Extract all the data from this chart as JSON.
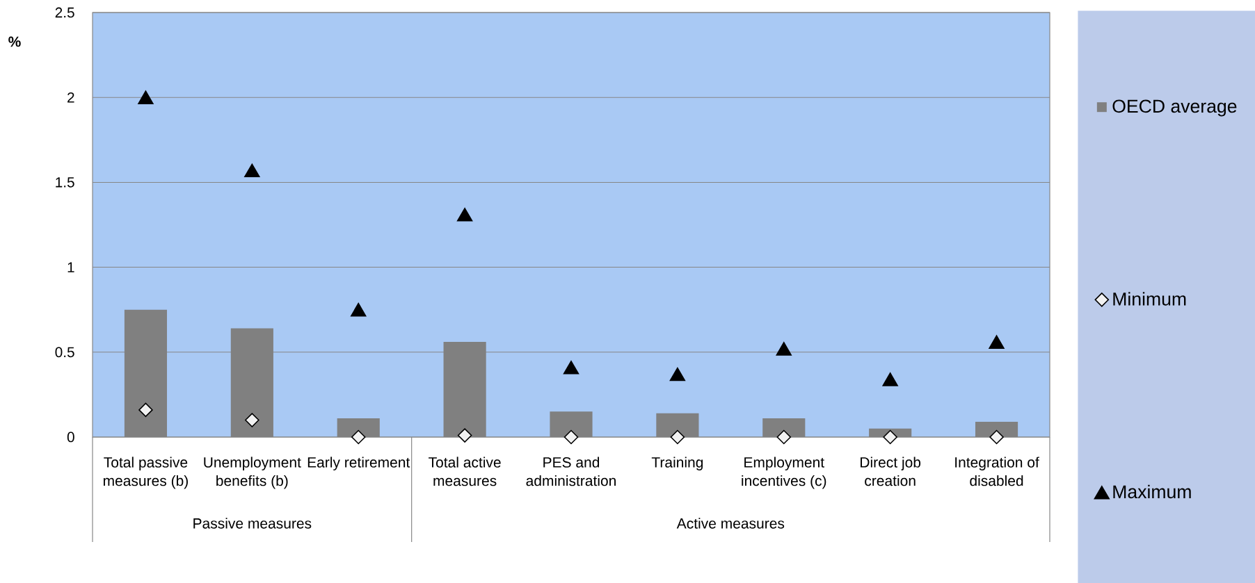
{
  "chart_data": {
    "type": "bar",
    "ylabel": "%",
    "categories": [
      "Total passive measures (b)",
      "Unemployment benefits (b)",
      "Early retirement",
      "Total active measures",
      "PES and administration",
      "Training",
      "Employment incentives (c)",
      "Direct job creation",
      "Integration of disabled"
    ],
    "series": [
      {
        "name": "OECD average",
        "color": "#808080",
        "values": [
          0.75,
          0.64,
          0.11,
          0.56,
          0.15,
          0.14,
          0.11,
          0.05,
          0.09
        ]
      },
      {
        "name": "Minimum",
        "type": "scatter",
        "marker": "diamond",
        "color": "#f2f2f2",
        "x": [
          "Total passive measures (b)",
          "Unemployment benefits (b)",
          "Early retirement",
          "Total active measures",
          "PES and administration",
          "Training",
          "Employment incentives (c)",
          "Direct job creation",
          "Integration of disabled"
        ],
        "values": [
          0.16,
          0.1,
          0,
          0.01,
          0,
          0,
          0,
          0,
          0
        ]
      },
      {
        "name": "Maximum",
        "type": "scatter",
        "marker": "triangle",
        "color": "#000000",
        "x": [
          "Total passive measures (b)",
          "Unemployment benefits (b)",
          "Early retirement",
          "Total active measures",
          "PES and administration",
          "Training",
          "Employment incentives (c)",
          "Direct job creation",
          "Integration of disabled"
        ],
        "values": [
          2.0,
          1.57,
          0.75,
          1.31,
          0.41,
          0.37,
          0.52,
          0.34,
          0.56
        ]
      }
    ],
    "ylim": [
      0,
      2.5
    ],
    "yticks": [
      0,
      0.5,
      1,
      1.5,
      2,
      2.5
    ],
    "grid": "y",
    "legend": "right",
    "annotations": [
      "Passive measures",
      "Active measures"
    ]
  }
}
